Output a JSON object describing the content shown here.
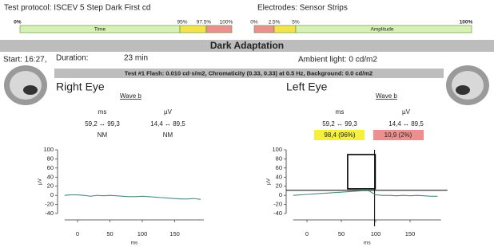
{
  "header": {
    "protocol": "Test protocol: ISCEV 5 Step Dark First cd",
    "electrodes": "Electrodes: Sensor Strips"
  },
  "time_scale": {
    "label": "Time",
    "ticks": [
      "0%",
      "95%",
      "97.5%",
      "100%"
    ]
  },
  "amplitude_scale": {
    "label": "Amplitude",
    "ticks": [
      "0%",
      "2.5%",
      "5%",
      "100%"
    ]
  },
  "section_title": "Dark Adaptation",
  "session": {
    "start": "Start: 16:27,",
    "duration_label": "Duration:",
    "duration": "23 min",
    "ambient": "Ambient light: 0 cd/m2"
  },
  "test_info": "Test #1 Flash: 0.010 cd·s/m2, Chromaticity (0.33, 0.33) at 0.5 Hz, Background: 0.0 cd/m2",
  "eyes": [
    {
      "title": "Right Eye",
      "wave": "Wave b",
      "units": [
        "ms",
        "µV"
      ],
      "ranges": [
        "59,2 ↔ 99,3",
        "14,4 ↔ 89,5"
      ],
      "results": [
        "NM",
        "NM"
      ]
    },
    {
      "title": "Left Eye",
      "wave": "Wave b",
      "units": [
        "ms",
        "µV"
      ],
      "ranges": [
        "59,2 ↔ 99,3",
        "14,4 ↔ 89,5"
      ],
      "results": [
        "98,4 (96%)",
        "10,9 (2%)"
      ]
    }
  ],
  "chart_data": [
    {
      "type": "line",
      "xlabel": "ms",
      "ylabel": "µV",
      "x": [
        -20,
        -10,
        0,
        10,
        20,
        30,
        40,
        50,
        60,
        70,
        80,
        90,
        100,
        110,
        120,
        130,
        140,
        150,
        160,
        170,
        180,
        190
      ],
      "series": [
        {
          "color": "#4f8a83",
          "values": [
            0,
            1,
            1,
            0,
            -2,
            0,
            -1,
            0,
            -1,
            -2,
            -3,
            -3,
            -2,
            -3,
            -4,
            -5,
            -6,
            -7,
            -8,
            -8,
            -7,
            -9
          ]
        }
      ],
      "xlim": [
        -20,
        195
      ],
      "ylim": [
        -40,
        100
      ],
      "xticks": [
        0,
        50,
        100,
        150
      ],
      "yticks": [
        -40,
        -20,
        0,
        20,
        40,
        60,
        80,
        100
      ]
    },
    {
      "type": "line",
      "xlabel": "ms",
      "ylabel": "µV",
      "x": [
        -20,
        -10,
        0,
        10,
        20,
        30,
        40,
        50,
        60,
        70,
        80,
        90,
        100,
        110,
        120,
        130,
        140,
        150,
        160,
        170,
        180,
        190
      ],
      "series": [
        {
          "color": "#4f8a83",
          "values": [
            0,
            1,
            2,
            3,
            4,
            5,
            6,
            7,
            8,
            9,
            10,
            10,
            1,
            0,
            0,
            -1,
            0,
            -1,
            0,
            -1,
            -2,
            -2
          ]
        }
      ],
      "reference_box": {
        "x": [
          59.2,
          99.3
        ],
        "y": [
          14.4,
          89.5
        ]
      },
      "cursor": {
        "x": 98.4,
        "y": 10.9
      },
      "xlim": [
        -20,
        195
      ],
      "ylim": [
        -40,
        100
      ],
      "xticks": [
        0,
        50,
        100,
        150
      ],
      "yticks": [
        -40,
        -20,
        0,
        20,
        40,
        60,
        80,
        100
      ]
    }
  ]
}
